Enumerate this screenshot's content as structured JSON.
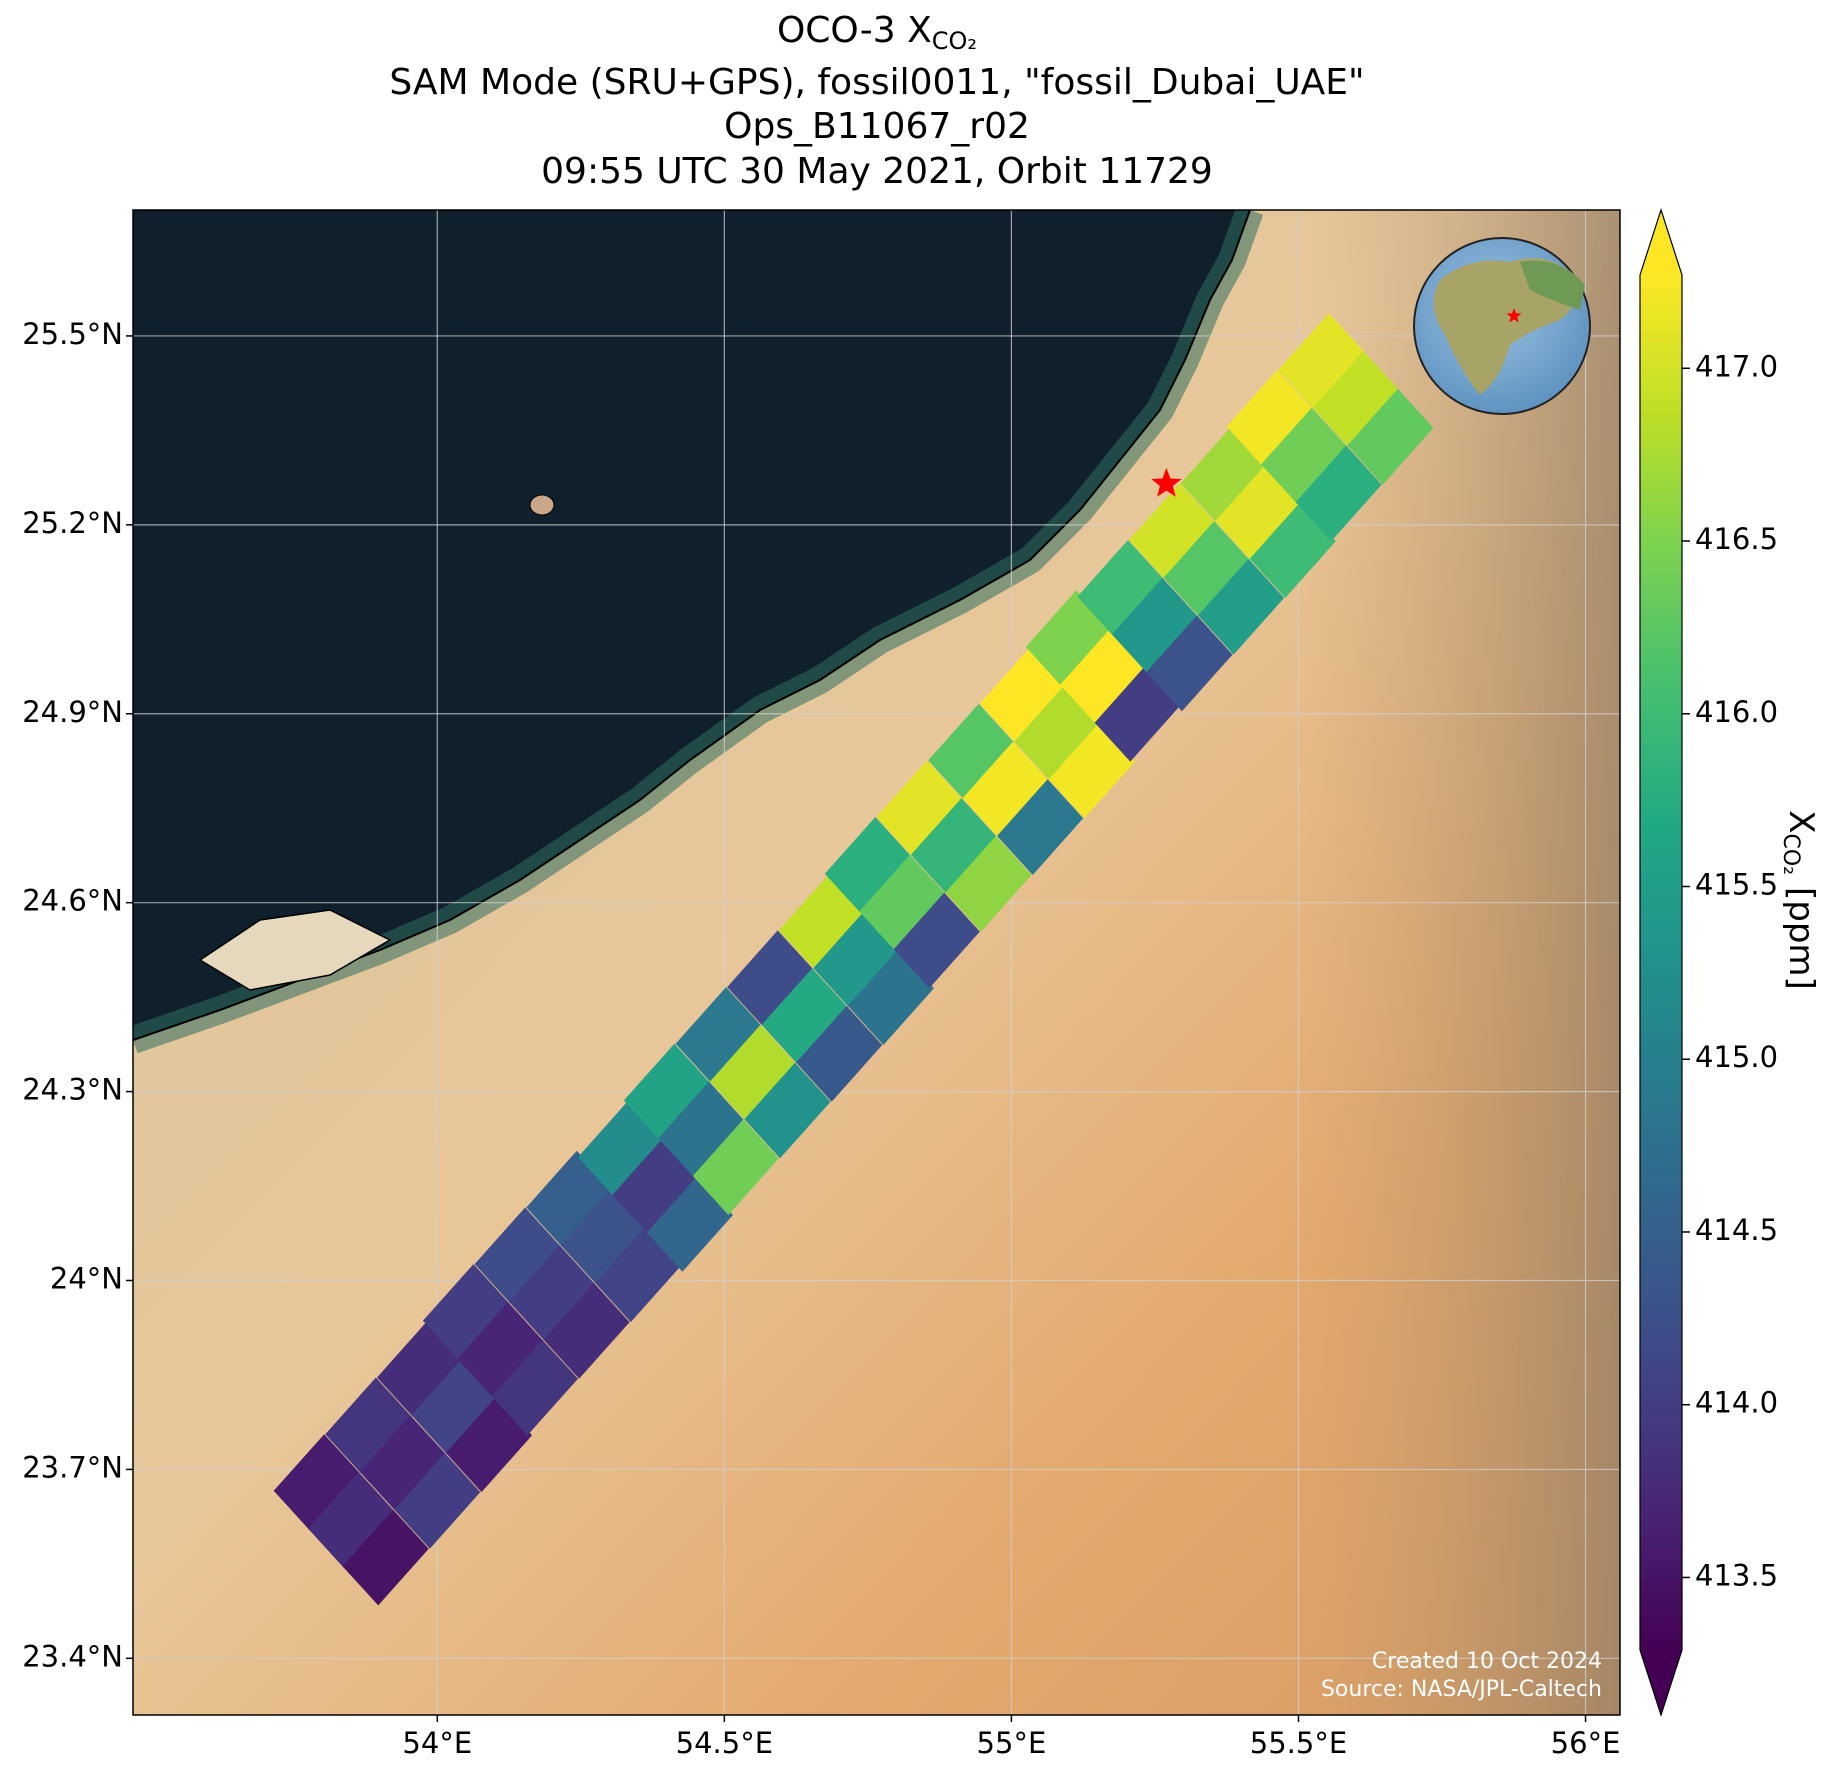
{
  "chart_data": {
    "type": "map",
    "title_prefix": "OCO-3 X",
    "title_subscript": "CO₂",
    "subtitle_lines": [
      "SAM Mode (SRU+GPS), fossil0011, \"fossil_Dubai_UAE\"",
      "Ops_B11067_r02",
      "09:55 UTC 30 May 2021, Orbit 11729"
    ],
    "xlim": [
      53.47,
      56.06
    ],
    "ylim": [
      23.31,
      25.7
    ],
    "xticks": [
      {
        "value": 54,
        "label": "54°E"
      },
      {
        "value": 54.5,
        "label": "54.5°E"
      },
      {
        "value": 55,
        "label": "55°E"
      },
      {
        "value": 55.5,
        "label": "55.5°E"
      },
      {
        "value": 56,
        "label": "56°E"
      }
    ],
    "yticks": [
      {
        "value": 23.4,
        "label": "23.4°N"
      },
      {
        "value": 23.7,
        "label": "23.7°N"
      },
      {
        "value": 24,
        "label": "24°N"
      },
      {
        "value": 24.3,
        "label": "24.3°N"
      },
      {
        "value": 24.6,
        "label": "24.6°N"
      },
      {
        "value": 24.9,
        "label": "24.9°N"
      },
      {
        "value": 25.2,
        "label": "25.2°N"
      },
      {
        "value": 25.5,
        "label": "25.5°N"
      }
    ],
    "grid": true,
    "target": {
      "lon": 55.27,
      "lat": 25.265,
      "color": "#ff0000"
    },
    "soundings": {
      "lon": [
        53.79,
        53.85,
        53.91,
        53.88,
        53.94,
        54.0,
        53.97,
        54.03,
        54.09,
        54.05,
        54.11,
        54.17,
        54.14,
        54.2,
        54.26,
        54.23,
        54.29,
        54.35,
        54.32,
        54.38,
        54.44,
        54.4,
        54.46,
        54.52,
        54.49,
        54.55,
        54.61,
        54.58,
        54.64,
        54.7,
        54.67,
        54.73,
        54.79,
        54.75,
        54.81,
        54.87,
        54.84,
        54.9,
        54.96,
        54.93,
        54.99,
        55.05,
        55.02,
        55.08,
        55.14,
        55.1,
        55.16,
        55.22,
        55.19,
        55.25,
        55.31,
        55.28,
        55.34,
        55.4,
        55.37,
        55.43,
        55.49,
        55.45,
        55.51,
        55.57,
        55.54,
        55.6,
        55.66
      ],
      "lat": [
        23.68,
        23.62,
        23.56,
        23.77,
        23.71,
        23.65,
        23.86,
        23.8,
        23.74,
        23.95,
        23.89,
        23.83,
        24.04,
        23.98,
        23.92,
        24.13,
        24.07,
        24.01,
        24.21,
        24.15,
        24.09,
        24.3,
        24.24,
        24.18,
        24.39,
        24.33,
        24.27,
        24.48,
        24.42,
        24.36,
        24.57,
        24.51,
        24.45,
        24.66,
        24.6,
        24.54,
        24.75,
        24.69,
        24.63,
        24.84,
        24.78,
        24.72,
        24.93,
        24.87,
        24.81,
        25.02,
        24.96,
        24.9,
        25.1,
        25.04,
        24.98,
        25.19,
        25.13,
        25.07,
        25.28,
        25.22,
        25.16,
        25.37,
        25.31,
        25.25,
        25.46,
        25.4,
        25.34
      ],
      "xco2": [
        413.6,
        413.8,
        413.5,
        413.9,
        413.7,
        414.0,
        413.8,
        414.1,
        413.6,
        414.0,
        413.7,
        413.9,
        414.2,
        414.0,
        413.8,
        414.5,
        414.3,
        414.1,
        415.2,
        414.0,
        414.6,
        415.6,
        414.8,
        416.4,
        414.9,
        416.8,
        415.3,
        414.2,
        415.7,
        414.4,
        416.9,
        415.4,
        414.8,
        415.8,
        416.3,
        414.2,
        417.1,
        415.9,
        416.6,
        416.2,
        417.2,
        414.9,
        417.3,
        416.8,
        417.2,
        416.5,
        417.3,
        414.0,
        416.0,
        415.4,
        414.3,
        417.0,
        416.2,
        415.5,
        416.7,
        417.1,
        416.0,
        417.2,
        416.4,
        415.8,
        417.1,
        416.9,
        416.3
      ]
    },
    "colorbar": {
      "colormap": "viridis",
      "clim": [
        413.29,
        417.27
      ],
      "extend": "both",
      "ticks": [
        {
          "value": 413.5,
          "label": "413.5"
        },
        {
          "value": 414,
          "label": "414.0"
        },
        {
          "value": 414.5,
          "label": "414.5"
        },
        {
          "value": 415,
          "label": "415.0"
        },
        {
          "value": 415.5,
          "label": "415.5"
        },
        {
          "value": 416,
          "label": "416.0"
        },
        {
          "value": 416.5,
          "label": "416.5"
        },
        {
          "value": 417,
          "label": "417.0"
        }
      ],
      "label_symbol": "X",
      "label_subscript": "CO₂",
      "label_unit": "[ppm]"
    },
    "footer": [
      "Created 10 Oct 2024",
      "Source: NASA/JPL-Caltech"
    ]
  }
}
